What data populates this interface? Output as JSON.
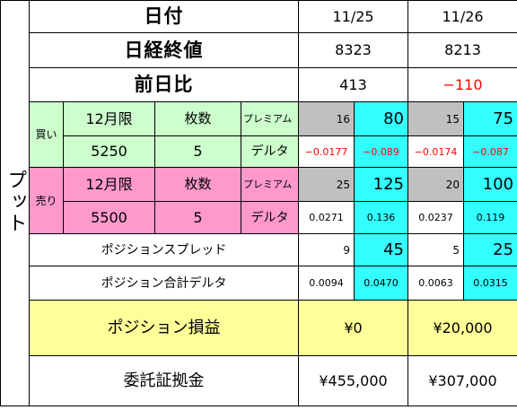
{
  "side_label": "プット",
  "header": {
    "date_label": "日付",
    "dates": [
      "11/25",
      "11/26"
    ],
    "close_label": "日経終値",
    "closes": [
      "8323",
      "8213"
    ],
    "change_label": "前日比",
    "changes": [
      "413",
      "−110"
    ]
  },
  "buy": {
    "tag": "買い",
    "month": "12月限",
    "qty_label": "枚数",
    "premium_label": "プレミアム",
    "strike": "5250",
    "qty": "5",
    "delta_label": "デルタ",
    "premium": [
      {
        "unit": "16",
        "total": "80"
      },
      {
        "unit": "15",
        "total": "75"
      }
    ],
    "delta": [
      {
        "unit": "−0.0177",
        "total": "−0.089"
      },
      {
        "unit": "−0.0174",
        "total": "−0.087"
      }
    ]
  },
  "sell": {
    "tag": "売り",
    "month": "12月限",
    "qty_label": "枚数",
    "premium_label": "プレミアム",
    "strike": "5500",
    "qty": "5",
    "delta_label": "デルタ",
    "premium": [
      {
        "unit": "25",
        "total": "125"
      },
      {
        "unit": "20",
        "total": "100"
      }
    ],
    "delta": [
      {
        "unit": "0.0271",
        "total": "0.136"
      },
      {
        "unit": "0.0237",
        "total": "0.119"
      }
    ]
  },
  "spread": {
    "label": "ポジションスプレッド",
    "values": [
      {
        "unit": "9",
        "total": "45"
      },
      {
        "unit": "5",
        "total": "25"
      }
    ]
  },
  "total_delta": {
    "label": "ポジション合計デルタ",
    "values": [
      {
        "unit": "0.0094",
        "total": "0.0470"
      },
      {
        "unit": "0.0063",
        "total": "0.0315"
      }
    ]
  },
  "pnl": {
    "label": "ポジション損益",
    "values": [
      "¥0",
      "¥20,000"
    ]
  },
  "margin": {
    "label": "委託証拠金",
    "values": [
      "¥455,000",
      "¥307,000"
    ]
  },
  "colors": {
    "buy_bg": "#ccffcc",
    "sell_bg": "#ff99cc",
    "unit_bg": "#c0c0c0",
    "total_bg": "#33ffff",
    "pnl_bg": "#ffff99",
    "negative": "#ff0000"
  }
}
